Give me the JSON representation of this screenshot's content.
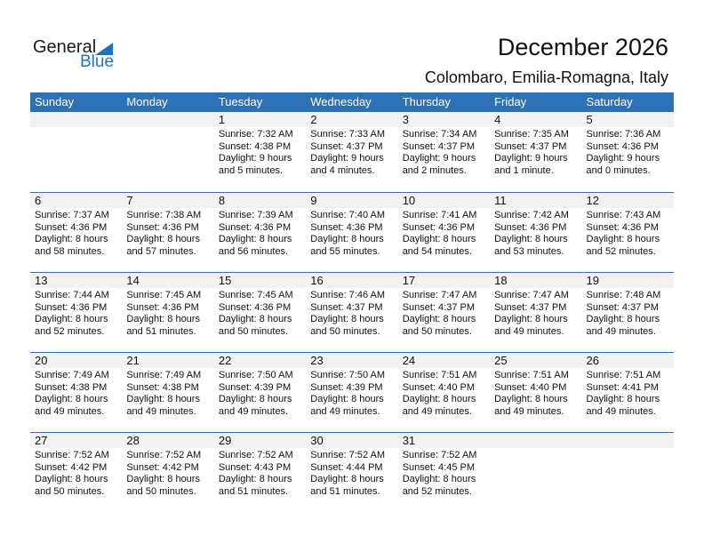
{
  "logo": {
    "line1": "General",
    "line2": "Blue"
  },
  "title": "December 2026",
  "location": "Colombaro, Emilia-Romagna, Italy",
  "days": [
    "Sunday",
    "Monday",
    "Tuesday",
    "Wednesday",
    "Thursday",
    "Friday",
    "Saturday"
  ],
  "weeks": [
    [
      null,
      null,
      {
        "d": "1",
        "sr": "Sunrise: 7:32 AM",
        "ss": "Sunset: 4:38 PM",
        "dl": "Daylight: 9 hours",
        "dm": "and 5 minutes."
      },
      {
        "d": "2",
        "sr": "Sunrise: 7:33 AM",
        "ss": "Sunset: 4:37 PM",
        "dl": "Daylight: 9 hours",
        "dm": "and 4 minutes."
      },
      {
        "d": "3",
        "sr": "Sunrise: 7:34 AM",
        "ss": "Sunset: 4:37 PM",
        "dl": "Daylight: 9 hours",
        "dm": "and 2 minutes."
      },
      {
        "d": "4",
        "sr": "Sunrise: 7:35 AM",
        "ss": "Sunset: 4:37 PM",
        "dl": "Daylight: 9 hours",
        "dm": "and 1 minute."
      },
      {
        "d": "5",
        "sr": "Sunrise: 7:36 AM",
        "ss": "Sunset: 4:36 PM",
        "dl": "Daylight: 9 hours",
        "dm": "and 0 minutes."
      }
    ],
    [
      {
        "d": "6",
        "sr": "Sunrise: 7:37 AM",
        "ss": "Sunset: 4:36 PM",
        "dl": "Daylight: 8 hours",
        "dm": "and 58 minutes."
      },
      {
        "d": "7",
        "sr": "Sunrise: 7:38 AM",
        "ss": "Sunset: 4:36 PM",
        "dl": "Daylight: 8 hours",
        "dm": "and 57 minutes."
      },
      {
        "d": "8",
        "sr": "Sunrise: 7:39 AM",
        "ss": "Sunset: 4:36 PM",
        "dl": "Daylight: 8 hours",
        "dm": "and 56 minutes."
      },
      {
        "d": "9",
        "sr": "Sunrise: 7:40 AM",
        "ss": "Sunset: 4:36 PM",
        "dl": "Daylight: 8 hours",
        "dm": "and 55 minutes."
      },
      {
        "d": "10",
        "sr": "Sunrise: 7:41 AM",
        "ss": "Sunset: 4:36 PM",
        "dl": "Daylight: 8 hours",
        "dm": "and 54 minutes."
      },
      {
        "d": "11",
        "sr": "Sunrise: 7:42 AM",
        "ss": "Sunset: 4:36 PM",
        "dl": "Daylight: 8 hours",
        "dm": "and 53 minutes."
      },
      {
        "d": "12",
        "sr": "Sunrise: 7:43 AM",
        "ss": "Sunset: 4:36 PM",
        "dl": "Daylight: 8 hours",
        "dm": "and 52 minutes."
      }
    ],
    [
      {
        "d": "13",
        "sr": "Sunrise: 7:44 AM",
        "ss": "Sunset: 4:36 PM",
        "dl": "Daylight: 8 hours",
        "dm": "and 52 minutes."
      },
      {
        "d": "14",
        "sr": "Sunrise: 7:45 AM",
        "ss": "Sunset: 4:36 PM",
        "dl": "Daylight: 8 hours",
        "dm": "and 51 minutes."
      },
      {
        "d": "15",
        "sr": "Sunrise: 7:45 AM",
        "ss": "Sunset: 4:36 PM",
        "dl": "Daylight: 8 hours",
        "dm": "and 50 minutes."
      },
      {
        "d": "16",
        "sr": "Sunrise: 7:46 AM",
        "ss": "Sunset: 4:37 PM",
        "dl": "Daylight: 8 hours",
        "dm": "and 50 minutes."
      },
      {
        "d": "17",
        "sr": "Sunrise: 7:47 AM",
        "ss": "Sunset: 4:37 PM",
        "dl": "Daylight: 8 hours",
        "dm": "and 50 minutes."
      },
      {
        "d": "18",
        "sr": "Sunrise: 7:47 AM",
        "ss": "Sunset: 4:37 PM",
        "dl": "Daylight: 8 hours",
        "dm": "and 49 minutes."
      },
      {
        "d": "19",
        "sr": "Sunrise: 7:48 AM",
        "ss": "Sunset: 4:37 PM",
        "dl": "Daylight: 8 hours",
        "dm": "and 49 minutes."
      }
    ],
    [
      {
        "d": "20",
        "sr": "Sunrise: 7:49 AM",
        "ss": "Sunset: 4:38 PM",
        "dl": "Daylight: 8 hours",
        "dm": "and 49 minutes."
      },
      {
        "d": "21",
        "sr": "Sunrise: 7:49 AM",
        "ss": "Sunset: 4:38 PM",
        "dl": "Daylight: 8 hours",
        "dm": "and 49 minutes."
      },
      {
        "d": "22",
        "sr": "Sunrise: 7:50 AM",
        "ss": "Sunset: 4:39 PM",
        "dl": "Daylight: 8 hours",
        "dm": "and 49 minutes."
      },
      {
        "d": "23",
        "sr": "Sunrise: 7:50 AM",
        "ss": "Sunset: 4:39 PM",
        "dl": "Daylight: 8 hours",
        "dm": "and 49 minutes."
      },
      {
        "d": "24",
        "sr": "Sunrise: 7:51 AM",
        "ss": "Sunset: 4:40 PM",
        "dl": "Daylight: 8 hours",
        "dm": "and 49 minutes."
      },
      {
        "d": "25",
        "sr": "Sunrise: 7:51 AM",
        "ss": "Sunset: 4:40 PM",
        "dl": "Daylight: 8 hours",
        "dm": "and 49 minutes."
      },
      {
        "d": "26",
        "sr": "Sunrise: 7:51 AM",
        "ss": "Sunset: 4:41 PM",
        "dl": "Daylight: 8 hours",
        "dm": "and 49 minutes."
      }
    ],
    [
      {
        "d": "27",
        "sr": "Sunrise: 7:52 AM",
        "ss": "Sunset: 4:42 PM",
        "dl": "Daylight: 8 hours",
        "dm": "and 50 minutes."
      },
      {
        "d": "28",
        "sr": "Sunrise: 7:52 AM",
        "ss": "Sunset: 4:42 PM",
        "dl": "Daylight: 8 hours",
        "dm": "and 50 minutes."
      },
      {
        "d": "29",
        "sr": "Sunrise: 7:52 AM",
        "ss": "Sunset: 4:43 PM",
        "dl": "Daylight: 8 hours",
        "dm": "and 51 minutes."
      },
      {
        "d": "30",
        "sr": "Sunrise: 7:52 AM",
        "ss": "Sunset: 4:44 PM",
        "dl": "Daylight: 8 hours",
        "dm": "and 51 minutes."
      },
      {
        "d": "31",
        "sr": "Sunrise: 7:52 AM",
        "ss": "Sunset: 4:45 PM",
        "dl": "Daylight: 8 hours",
        "dm": "and 52 minutes."
      },
      null,
      null
    ]
  ]
}
